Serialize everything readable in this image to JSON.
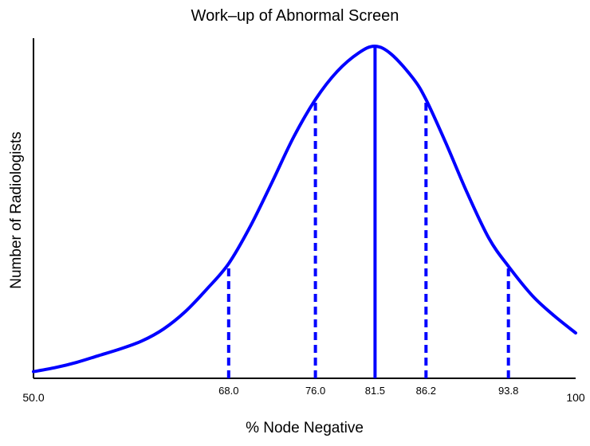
{
  "chart_data": {
    "type": "line",
    "title": "Work–up of Abnormal Screen",
    "xlabel": "% Node Negative",
    "ylabel": "Number of Radiologists",
    "xlim": [
      50.0,
      100
    ],
    "tick_labels": [
      "50.0",
      "68.0",
      "76.0",
      "81.5",
      "86.2",
      "93.8",
      "100"
    ],
    "tick_values": [
      50.0,
      68.0,
      76.0,
      81.5,
      86.2,
      93.8,
      100
    ],
    "y_axis_ticks": false,
    "grid": false,
    "legend": "none",
    "curve_color": "#0000ff",
    "series": [
      {
        "x": [
          50.0,
          52.0,
          54.0,
          56.0,
          58.0,
          60.0,
          62.0,
          64.0,
          66.0,
          68.0,
          70.0,
          72.0,
          74.0,
          76.0,
          78.0,
          80.0,
          81.5,
          83.0,
          85.0,
          86.2,
          88.0,
          90.0,
          92.0,
          93.8,
          96.0,
          98.0,
          100
        ],
        "y": [
          0.05,
          0.08,
          0.12,
          0.17,
          0.22,
          0.28,
          0.37,
          0.5,
          0.67,
          0.86,
          1.14,
          1.47,
          1.81,
          2.09,
          2.3,
          2.44,
          2.49,
          2.43,
          2.25,
          2.09,
          1.77,
          1.39,
          1.05,
          0.84,
          0.62,
          0.47,
          0.34
        ]
      }
    ],
    "reference_lines": [
      {
        "x": 68.0,
        "style": "dashed"
      },
      {
        "x": 76.0,
        "style": "dashed"
      },
      {
        "x": 81.5,
        "style": "solid"
      },
      {
        "x": 86.2,
        "style": "dashed"
      },
      {
        "x": 93.8,
        "style": "dashed"
      }
    ]
  }
}
